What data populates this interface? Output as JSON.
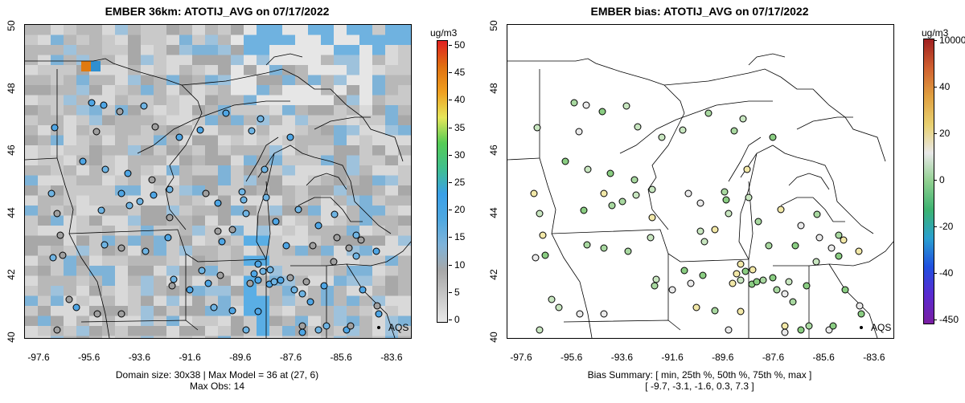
{
  "left_panel": {
    "title": "EMBER 36km: ATOTIJ_AVG on 07/17/2022",
    "unit": "ug/m3",
    "colorbar_ticks": [
      "50",
      "45",
      "40",
      "35",
      "30",
      "25",
      "20",
      "15",
      "10",
      "5",
      "0"
    ],
    "caption_line1": "Domain size: 30x38 | Max Model = 36 at (27, 6)",
    "caption_line2": "Max Obs: 14",
    "legend_label": "AQS"
  },
  "right_panel": {
    "title": "EMBER bias: ATOTIJ_AVG on 07/17/2022",
    "unit": "ug/m3",
    "colorbar_ticks": [
      "10000",
      "40",
      "20",
      "0",
      "-20",
      "-40",
      "-450"
    ],
    "caption_line1": "Bias Summary: [ min, 25th %, 50th %, 75th %, max ]",
    "caption_line2": "[ -9.7,   -3.1,   -1.6,   0.3,   7.3 ]",
    "legend_label": "AQS"
  },
  "axes": {
    "y_ticks": [
      "50",
      "48",
      "46",
      "44",
      "42",
      "40"
    ],
    "x_ticks": [
      "-97.6",
      "-95.6",
      "-93.6",
      "-91.6",
      "-89.6",
      "-87.6",
      "-85.6",
      "-83.6"
    ]
  },
  "colors": {
    "concentration_scale": [
      "#e8e8e8",
      "#c8c8c8",
      "#a8a8a8",
      "#7fb3d9",
      "#4fa8e0",
      "#3aa0e8",
      "#3fbf8f",
      "#55cc55",
      "#e6e65a",
      "#f0a020",
      "#e07010",
      "#e02020"
    ],
    "bias_scale": [
      "#7a1fa2",
      "#5a2ad0",
      "#2050e0",
      "#2aa0d0",
      "#3cb371",
      "#90d090",
      "#e8e8e8",
      "#e8d070",
      "#e0a040",
      "#d06030",
      "#a02020"
    ]
  }
}
